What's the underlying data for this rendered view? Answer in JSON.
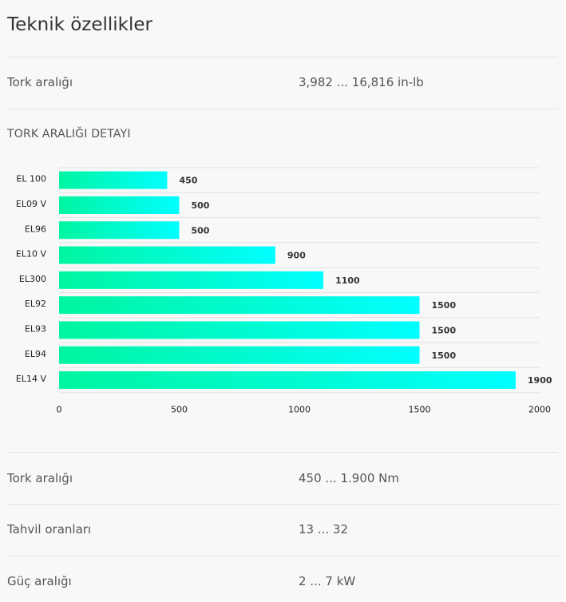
{
  "page": {
    "title": "Teknik özellikler"
  },
  "specs_top": [
    {
      "label": "Tork aralığı",
      "value": "3,982 ... 16,816 in-lb"
    }
  ],
  "chart_section": {
    "heading": "TORK ARALIĞI DETAYI"
  },
  "chart_data": {
    "type": "bar",
    "orientation": "horizontal",
    "categories": [
      "EL 100",
      "EL09 V",
      "EL96",
      "EL10 V",
      "EL300",
      "EL92",
      "EL93",
      "EL94",
      "EL14 V"
    ],
    "values": [
      450,
      500,
      500,
      900,
      1100,
      1500,
      1500,
      1500,
      1900
    ],
    "xlim": [
      0,
      2000
    ],
    "x_ticks": [
      0,
      500,
      1000,
      1500,
      2000
    ],
    "grid": true,
    "bar_gradient": [
      "#00f5a0",
      "#00ffff"
    ],
    "title": "",
    "xlabel": "",
    "ylabel": ""
  },
  "specs_bottom": [
    {
      "label": "Tork aralığı",
      "value": "450 ... 1.900 Nm"
    },
    {
      "label": "Tahvil oranları",
      "value": "13 ... 32"
    },
    {
      "label": "Güç aralığı",
      "value": "2 ... 7 kW"
    }
  ]
}
